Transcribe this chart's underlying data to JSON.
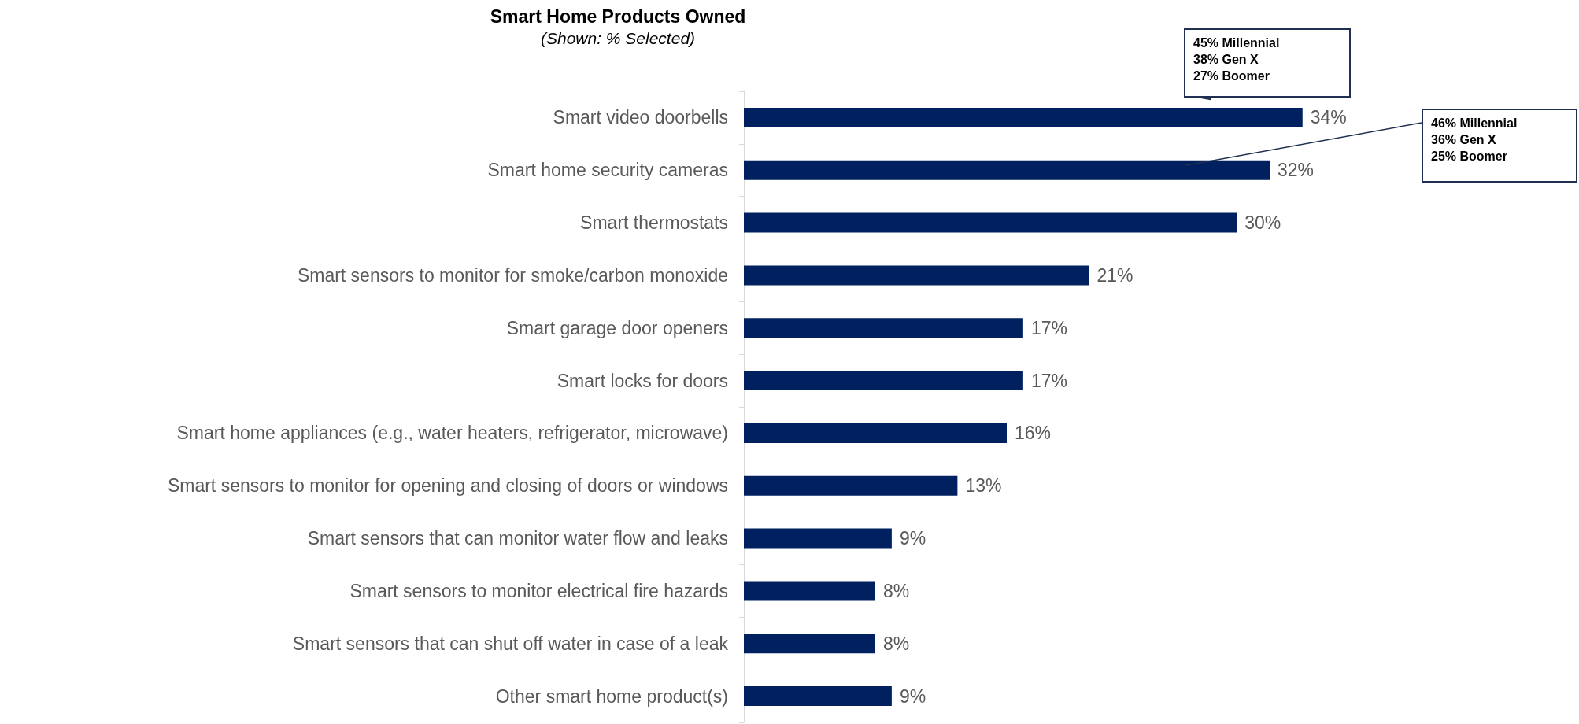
{
  "chart_data": {
    "type": "bar",
    "orientation": "horizontal",
    "title": "Smart Home Products Owned",
    "subtitle": "(Shown: % Selected)",
    "categories": [
      "Smart video doorbells",
      "Smart home security cameras",
      "Smart thermostats",
      "Smart sensors to monitor for smoke/carbon monoxide",
      "Smart garage door openers",
      "Smart locks for doors",
      "Smart home appliances (e.g., water heaters, refrigerator, microwave)",
      "Smart sensors to monitor for opening and closing of doors or windows",
      "Smart sensors that can monitor water flow and leaks",
      "Smart sensors to monitor electrical fire hazards",
      "Smart sensors that can shut off water in case of a leak",
      "Other smart home product(s)"
    ],
    "values": [
      34,
      32,
      30,
      21,
      17,
      17,
      16,
      13,
      9,
      8,
      8,
      9
    ],
    "value_labels": [
      "34%",
      "32%",
      "30%",
      "21%",
      "17%",
      "17%",
      "16%",
      "13%",
      "9%",
      "8%",
      "8%",
      "9%"
    ],
    "color": "#002060",
    "annotations": [
      "45% Millennial\n38% Gen X\n27% Boomer",
      "46% Millennial\n36% Gen X\n25% Boomer"
    ]
  }
}
